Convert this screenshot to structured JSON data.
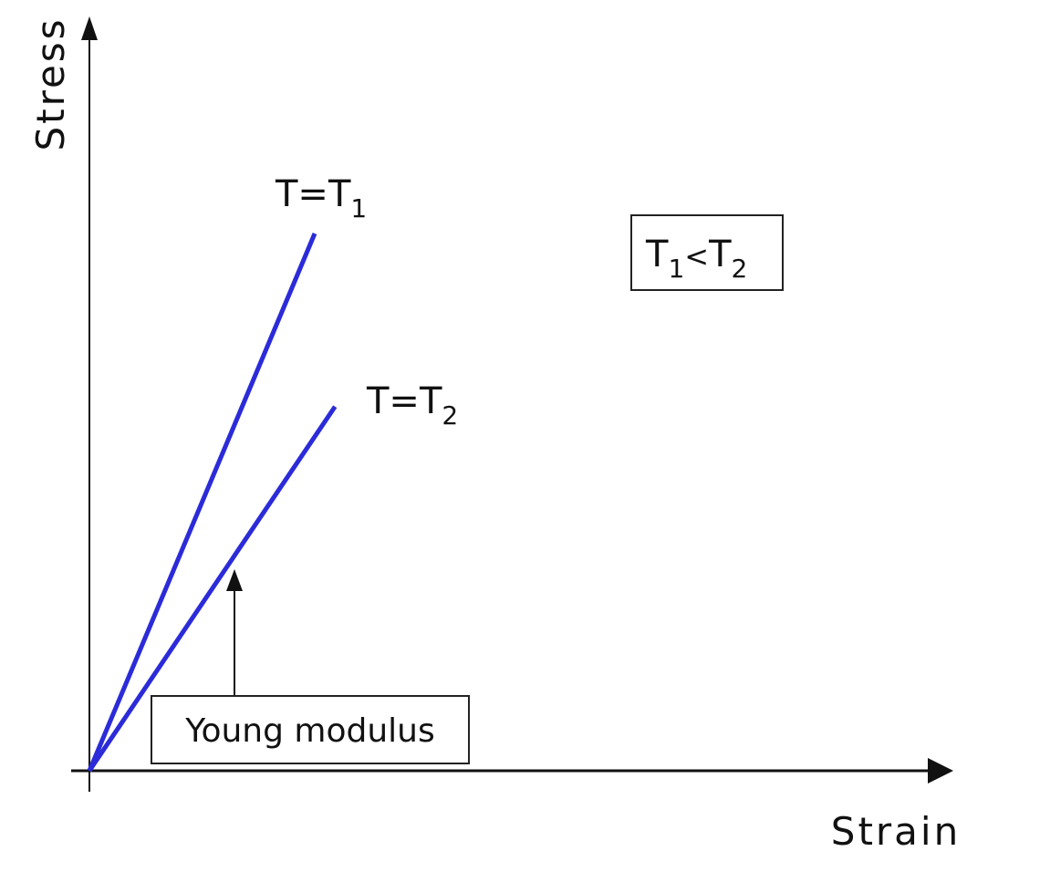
{
  "chart_data": {
    "type": "line",
    "xlabel": "Strain",
    "ylabel": "Stress",
    "series": [
      {
        "name": "T=T1",
        "label_main": "T=T",
        "label_sub": "1",
        "x": [
          0,
          1
        ],
        "y": [
          0,
          2.375
        ],
        "color": "#2b2bd9"
      },
      {
        "name": "T=T2",
        "label_main": "T=T",
        "label_sub": "2",
        "x": [
          0,
          1.09
        ],
        "y": [
          0,
          1.61
        ],
        "color": "#2b2bd9"
      }
    ],
    "annotations": {
      "relation_box": {
        "t1": "T",
        "sub1": "1",
        "symbol": "<",
        "t2": "T",
        "sub2": "2"
      },
      "young_modulus": {
        "text": "Young modulus"
      }
    },
    "xlim": [
      0,
      4
    ],
    "ylim": [
      0,
      3.3
    ],
    "grid": false,
    "axis_color": "#111111"
  }
}
